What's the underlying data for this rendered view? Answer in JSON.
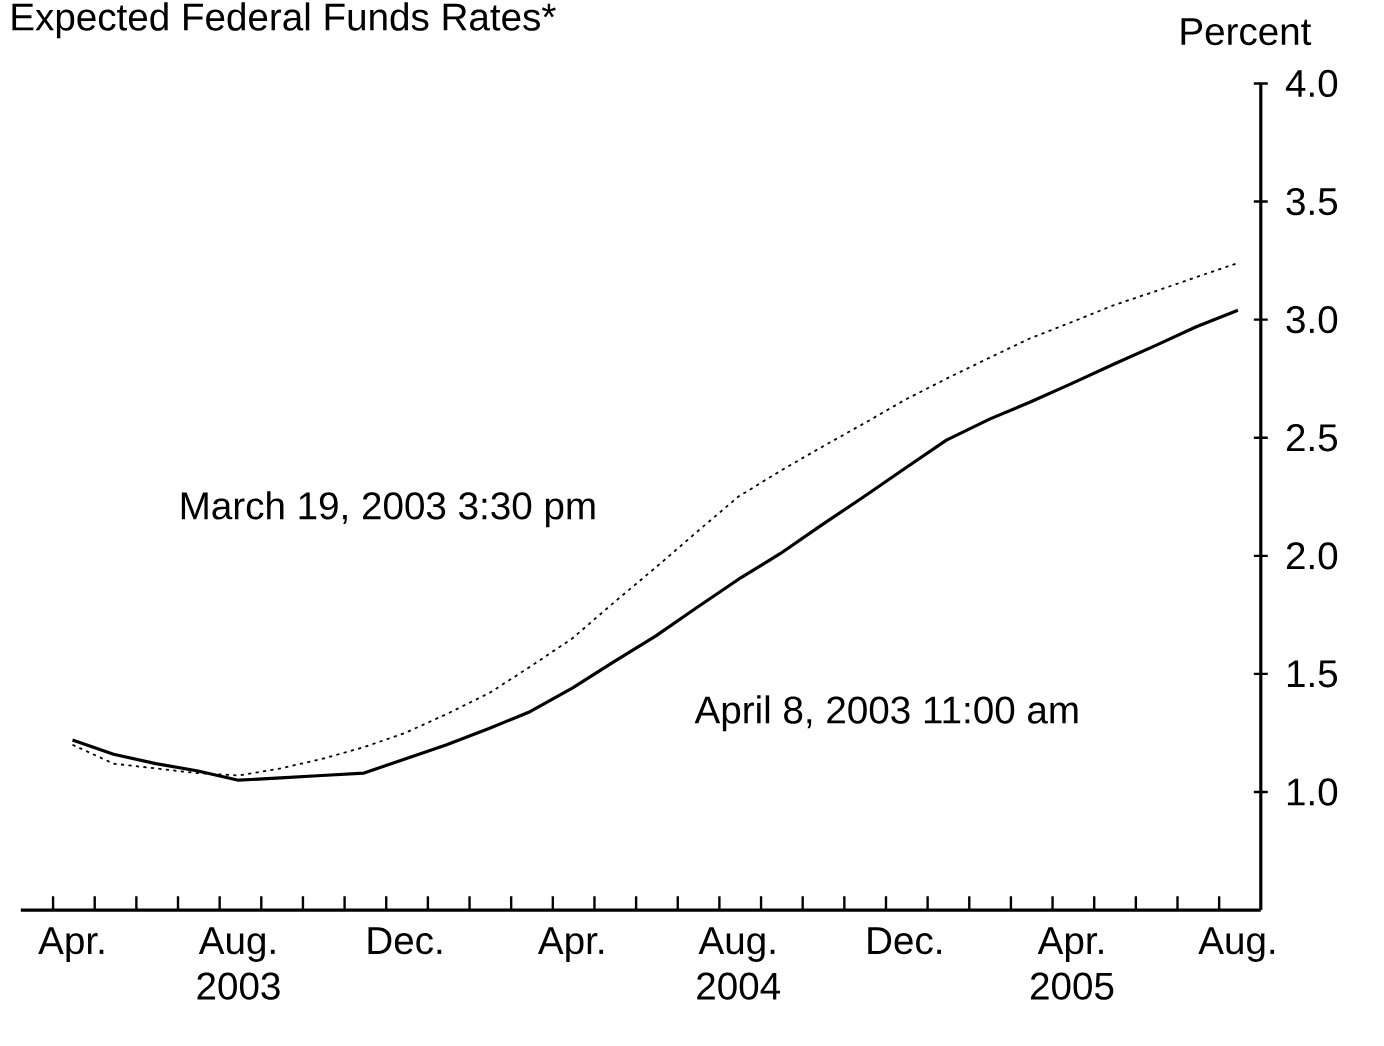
{
  "chart_data": {
    "type": "line",
    "title": "Expected Federal Funds Rates*",
    "ylabel": "Percent",
    "x": [
      "2003-04-15",
      "2003-05-15",
      "2003-06-15",
      "2003-07-15",
      "2003-08-15",
      "2003-09-15",
      "2003-10-15",
      "2003-11-15",
      "2003-12-15",
      "2004-01-15",
      "2004-02-15",
      "2004-03-15",
      "2004-04-15",
      "2004-05-15",
      "2004-06-15",
      "2004-07-15",
      "2004-08-15",
      "2004-09-15",
      "2004-10-15",
      "2004-11-15",
      "2004-12-15",
      "2005-01-15",
      "2005-02-15",
      "2005-03-15",
      "2005-04-15",
      "2005-05-15",
      "2005-06-15",
      "2005-07-15",
      "2005-08-15"
    ],
    "series": [
      {
        "name": "April 8, 2003  11:00 am",
        "color": "#000000",
        "line_style": "solid",
        "values": [
          1.22,
          1.16,
          1.12,
          1.09,
          1.05,
          1.06,
          1.07,
          1.08,
          1.14,
          1.2,
          1.27,
          1.34,
          1.44,
          1.55,
          1.66,
          1.78,
          1.9,
          2.01,
          2.13,
          2.25,
          2.37,
          2.49,
          2.58,
          2.65,
          2.73,
          2.81,
          2.89,
          2.97,
          3.04
        ]
      },
      {
        "name": "March 19, 2003 3:30 pm",
        "color": "#000000",
        "line_style": "dotted",
        "values": [
          1.2,
          1.12,
          1.1,
          1.08,
          1.07,
          1.1,
          1.14,
          1.19,
          1.25,
          1.33,
          1.42,
          1.53,
          1.65,
          1.8,
          1.95,
          2.1,
          2.25,
          2.36,
          2.46,
          2.56,
          2.66,
          2.75,
          2.84,
          2.92,
          2.99,
          3.06,
          3.12,
          3.18,
          3.24
        ]
      }
    ],
    "xlim": [
      "2003-03-08",
      "2005-09-01"
    ],
    "xticks": [
      {
        "value": "2003-04-01",
        "label": null
      },
      {
        "value": "2003-05-01",
        "label": null
      },
      {
        "value": "2003-06-01",
        "label": null
      },
      {
        "value": "2003-07-01",
        "label": null
      },
      {
        "value": "2003-08-01",
        "label": null
      },
      {
        "value": "2003-09-01",
        "label": null
      },
      {
        "value": "2003-10-01",
        "label": null
      },
      {
        "value": "2003-11-01",
        "label": null
      },
      {
        "value": "2003-12-01",
        "label": null
      },
      {
        "value": "2004-01-01",
        "label": null
      },
      {
        "value": "2004-02-01",
        "label": null
      },
      {
        "value": "2004-03-01",
        "label": null
      },
      {
        "value": "2004-04-01",
        "label": null
      },
      {
        "value": "2004-05-01",
        "label": null
      },
      {
        "value": "2004-06-01",
        "label": null
      },
      {
        "value": "2004-07-01",
        "label": null
      },
      {
        "value": "2004-08-01",
        "label": null
      },
      {
        "value": "2004-09-01",
        "label": null
      },
      {
        "value": "2004-10-01",
        "label": null
      },
      {
        "value": "2004-11-01",
        "label": null
      },
      {
        "value": "2004-12-01",
        "label": null
      },
      {
        "value": "2005-01-01",
        "label": null
      },
      {
        "value": "2005-02-01",
        "label": null
      },
      {
        "value": "2005-03-01",
        "label": null
      },
      {
        "value": "2005-04-01",
        "label": null
      },
      {
        "value": "2005-05-01",
        "label": null
      },
      {
        "value": "2005-06-01",
        "label": null
      },
      {
        "value": "2005-07-01",
        "label": null
      },
      {
        "value": "2005-08-01",
        "label": null
      },
      {
        "value": "2003-04-15",
        "label": "Apr."
      },
      {
        "value": "2003-08-15",
        "label": "Aug. 2003"
      },
      {
        "value": "2003-12-15",
        "label": "Dec."
      },
      {
        "value": "2004-04-15",
        "label": "Apr."
      },
      {
        "value": "2004-08-15",
        "label": "Aug. 2004"
      },
      {
        "value": "2004-12-15",
        "label": "Dec."
      },
      {
        "value": "2005-04-15",
        "label": "Apr. 2005"
      },
      {
        "value": "2005-08-15",
        "label": "Aug."
      }
    ],
    "ylim": [
      0.5,
      4.0
    ],
    "yticks": [
      {
        "value": 1.0,
        "label": "1.0"
      },
      {
        "value": 1.5,
        "label": "1.5"
      },
      {
        "value": 2.0,
        "label": "2.0"
      },
      {
        "value": 2.5,
        "label": "2.5"
      },
      {
        "value": 3.0,
        "label": "3.0"
      },
      {
        "value": 3.5,
        "label": "3.5"
      },
      {
        "value": 4.0,
        "label": "4.0"
      }
    ],
    "grid": false,
    "legend": false,
    "marker": "none"
  }
}
